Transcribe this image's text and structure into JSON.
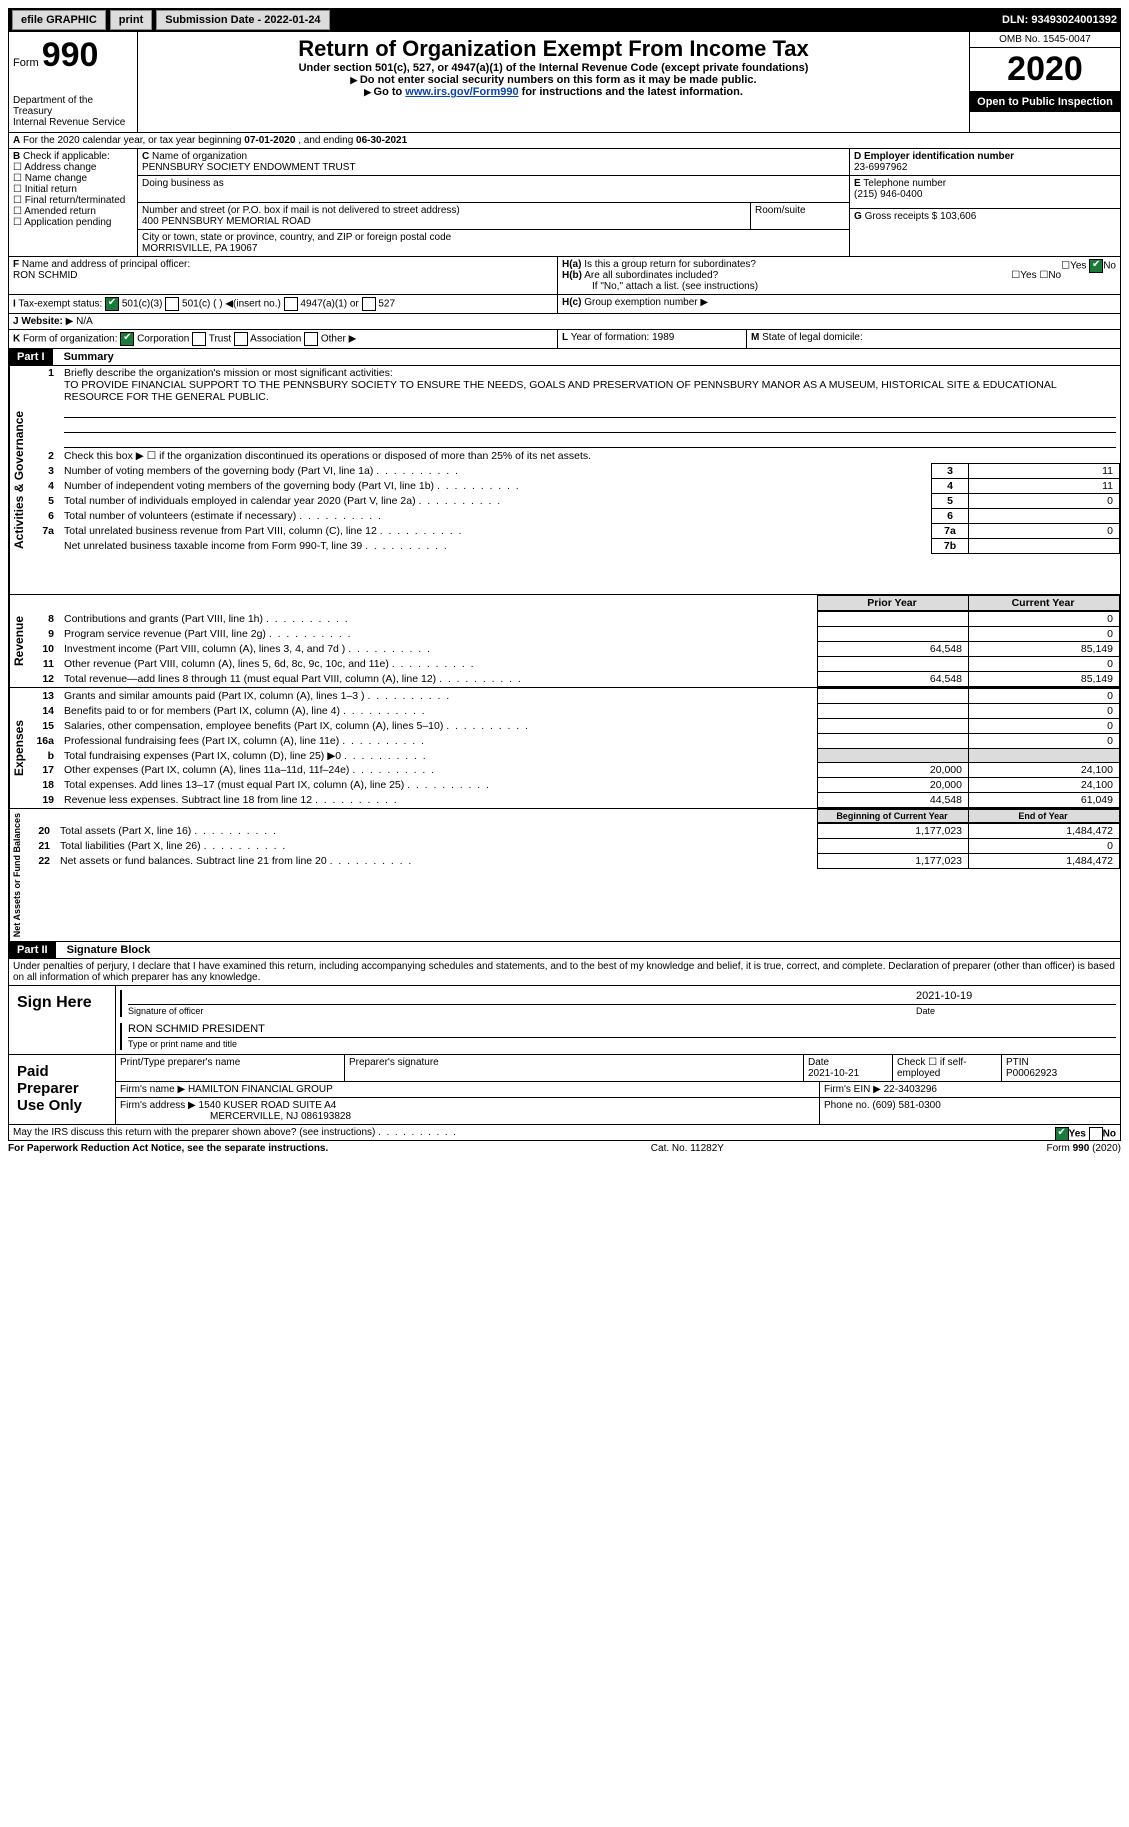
{
  "topbar": {
    "efile": "efile GRAPHIC",
    "print": "print",
    "submission_label": "Submission Date - ",
    "submission_date": "2022-01-24",
    "dln_label": "DLN: ",
    "dln": "93493024001392"
  },
  "header": {
    "form_label": "Form",
    "form_number": "990",
    "dept": "Department of the Treasury",
    "irs": "Internal Revenue Service",
    "title": "Return of Organization Exempt From Income Tax",
    "subtitle": "Under section 501(c), 527, or 4947(a)(1) of the Internal Revenue Code (except private foundations)",
    "note1": "Do not enter social security numbers on this form as it may be made public.",
    "note2_prefix": "Go to ",
    "note2_link": "www.irs.gov/Form990",
    "note2_suffix": " for instructions and the latest information.",
    "omb": "OMB No. 1545-0047",
    "year": "2020",
    "open": "Open to Public Inspection"
  },
  "sectionA": {
    "text_prefix": "For the 2020 calendar year, or tax year beginning ",
    "begin": "07-01-2020",
    "mid": " , and ending ",
    "end": "06-30-2021"
  },
  "B": {
    "label": "Check if applicable:",
    "items": [
      "Address change",
      "Name change",
      "Initial return",
      "Final return/terminated",
      "Amended return",
      "Application pending"
    ]
  },
  "C": {
    "name_label": "Name of organization",
    "name": "PENNSBURY SOCIETY ENDOWMENT TRUST",
    "dba_label": "Doing business as",
    "street_label": "Number and street (or P.O. box if mail is not delivered to street address)",
    "room_label": "Room/suite",
    "street": "400 PENNSBURY MEMORIAL ROAD",
    "city_label": "City or town, state or province, country, and ZIP or foreign postal code",
    "city": "MORRISVILLE, PA  19067"
  },
  "D": {
    "label": "Employer identification number",
    "value": "23-6997962"
  },
  "E": {
    "label": "Telephone number",
    "value": "(215) 946-0400"
  },
  "F": {
    "label": "Name and address of principal officer:",
    "value": "RON SCHMID"
  },
  "G": {
    "label": "Gross receipts $",
    "value": "103,606"
  },
  "H": {
    "a": "Is this a group return for subordinates?",
    "b": "Are all subordinates included?",
    "b_note": "If \"No,\" attach a list. (see instructions)",
    "c": "Group exemption number",
    "yes": "Yes",
    "no": "No"
  },
  "I": {
    "label": "Tax-exempt status:",
    "o1": "501(c)(3)",
    "o2": "501(c) (  )",
    "o2_hint": "(insert no.)",
    "o3": "4947(a)(1) or",
    "o4": "527"
  },
  "J": {
    "label": "Website:",
    "value": "N/A"
  },
  "K": {
    "label": "Form of organization:",
    "o1": "Corporation",
    "o2": "Trust",
    "o3": "Association",
    "o4": "Other"
  },
  "L": {
    "label": "Year of formation:",
    "value": "1989"
  },
  "M": {
    "label": "State of legal domicile:"
  },
  "part1": {
    "header": "Part I",
    "title": "Summary",
    "line1_label": "Briefly describe the organization's mission or most significant activities:",
    "line1_text": "TO PROVIDE FINANCIAL SUPPORT TO THE PENNSBURY SOCIETY TO ENSURE THE NEEDS, GOALS AND PRESERVATION OF PENNSBURY MANOR AS A MUSEUM, HISTORICAL SITE & EDUCATIONAL RESOURCE FOR THE GENERAL PUBLIC.",
    "line2": "Check this box ▶ ☐  if the organization discontinued its operations or disposed of more than 25% of its net assets.",
    "rows": [
      {
        "n": "3",
        "desc": "Number of voting members of the governing body (Part VI, line 1a)",
        "box": "3",
        "val": "11"
      },
      {
        "n": "4",
        "desc": "Number of independent voting members of the governing body (Part VI, line 1b)",
        "box": "4",
        "val": "11"
      },
      {
        "n": "5",
        "desc": "Total number of individuals employed in calendar year 2020 (Part V, line 2a)",
        "box": "5",
        "val": "0"
      },
      {
        "n": "6",
        "desc": "Total number of volunteers (estimate if necessary)",
        "box": "6",
        "val": ""
      },
      {
        "n": "7a",
        "desc": "Total unrelated business revenue from Part VIII, column (C), line 12",
        "box": "7a",
        "val": "0"
      },
      {
        "n": "",
        "desc": "Net unrelated business taxable income from Form 990-T, line 39",
        "box": "7b",
        "val": ""
      }
    ],
    "col_prior": "Prior Year",
    "col_curr": "Current Year",
    "revenue": [
      {
        "n": "8",
        "desc": "Contributions and grants (Part VIII, line 1h)",
        "prior": "",
        "curr": "0"
      },
      {
        "n": "9",
        "desc": "Program service revenue (Part VIII, line 2g)",
        "prior": "",
        "curr": "0"
      },
      {
        "n": "10",
        "desc": "Investment income (Part VIII, column (A), lines 3, 4, and 7d )",
        "prior": "64,548",
        "curr": "85,149"
      },
      {
        "n": "11",
        "desc": "Other revenue (Part VIII, column (A), lines 5, 6d, 8c, 9c, 10c, and 11e)",
        "prior": "",
        "curr": "0"
      },
      {
        "n": "12",
        "desc": "Total revenue—add lines 8 through 11 (must equal Part VIII, column (A), line 12)",
        "prior": "64,548",
        "curr": "85,149"
      }
    ],
    "expenses": [
      {
        "n": "13",
        "desc": "Grants and similar amounts paid (Part IX, column (A), lines 1–3 )",
        "prior": "",
        "curr": "0"
      },
      {
        "n": "14",
        "desc": "Benefits paid to or for members (Part IX, column (A), line 4)",
        "prior": "",
        "curr": "0"
      },
      {
        "n": "15",
        "desc": "Salaries, other compensation, employee benefits (Part IX, column (A), lines 5–10)",
        "prior": "",
        "curr": "0"
      },
      {
        "n": "16a",
        "desc": "Professional fundraising fees (Part IX, column (A), line 11e)",
        "prior": "",
        "curr": "0"
      },
      {
        "n": "b",
        "desc": "Total fundraising expenses (Part IX, column (D), line 25) ▶0",
        "prior": "GREY",
        "curr": "GREY"
      },
      {
        "n": "17",
        "desc": "Other expenses (Part IX, column (A), lines 11a–11d, 11f–24e)",
        "prior": "20,000",
        "curr": "24,100"
      },
      {
        "n": "18",
        "desc": "Total expenses. Add lines 13–17 (must equal Part IX, column (A), line 25)",
        "prior": "20,000",
        "curr": "24,100"
      },
      {
        "n": "19",
        "desc": "Revenue less expenses. Subtract line 18 from line 12",
        "prior": "44,548",
        "curr": "61,049"
      }
    ],
    "col_begin": "Beginning of Current Year",
    "col_end": "End of Year",
    "netassets": [
      {
        "n": "20",
        "desc": "Total assets (Part X, line 16)",
        "prior": "1,177,023",
        "curr": "1,484,472"
      },
      {
        "n": "21",
        "desc": "Total liabilities (Part X, line 26)",
        "prior": "",
        "curr": "0"
      },
      {
        "n": "22",
        "desc": "Net assets or fund balances. Subtract line 21 from line 20",
        "prior": "1,177,023",
        "curr": "1,484,472"
      }
    ],
    "side_gov": "Activities & Governance",
    "side_rev": "Revenue",
    "side_exp": "Expenses",
    "side_net": "Net Assets or Fund Balances"
  },
  "part2": {
    "header": "Part II",
    "title": "Signature Block",
    "declaration": "Under penalties of perjury, I declare that I have examined this return, including accompanying schedules and statements, and to the best of my knowledge and belief, it is true, correct, and complete. Declaration of preparer (other than officer) is based on all information of which preparer has any knowledge.",
    "sign_here": "Sign Here",
    "sig_officer": "Signature of officer",
    "sig_date": "2021-10-19",
    "date_label": "Date",
    "officer_name": "RON SCHMID PRESIDENT",
    "type_label": "Type or print name and title",
    "paid": "Paid Preparer Use Only",
    "prep_name_label": "Print/Type preparer's name",
    "prep_sig_label": "Preparer's signature",
    "prep_date": "2021-10-21",
    "check_self": "Check ☐ if self-employed",
    "ptin_label": "PTIN",
    "ptin": "P00062923",
    "firm_name_label": "Firm's name ▶",
    "firm_name": "HAMILTON FINANCIAL GROUP",
    "firm_ein_label": "Firm's EIN ▶",
    "firm_ein": "22-3403296",
    "firm_addr_label": "Firm's address ▶",
    "firm_addr1": "1540 KUSER ROAD SUITE A4",
    "firm_addr2": "MERCERVILLE, NJ  086193828",
    "phone_label": "Phone no.",
    "phone": "(609) 581-0300",
    "discuss": "May the IRS discuss this return with the preparer shown above? (see instructions)"
  },
  "footer": {
    "pra": "For Paperwork Reduction Act Notice, see the separate instructions.",
    "cat": "Cat. No. 11282Y",
    "form": "Form 990 (2020)"
  }
}
